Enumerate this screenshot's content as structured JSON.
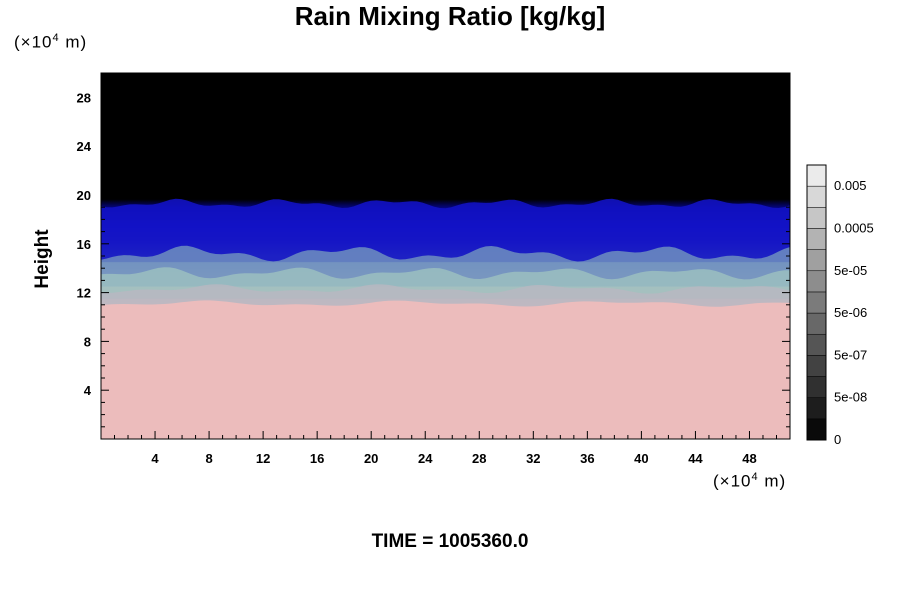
{
  "chart_data": {
    "type": "heatmap",
    "title": "Rain Mixing Ratio [kg/kg]",
    "ylabel": "Height",
    "y_unit_prefix": "(×10",
    "y_unit_exp": "4",
    "y_unit_suffix": " m)",
    "x_unit_prefix": "(×10",
    "x_unit_exp": "4",
    "x_unit_suffix": " m)",
    "xlim": [
      0,
      51
    ],
    "ylim": [
      0,
      30
    ],
    "x_ticks": [
      4,
      8,
      12,
      16,
      20,
      24,
      28,
      32,
      36,
      40,
      44,
      48
    ],
    "y_ticks": [
      4,
      8,
      12,
      16,
      20,
      24,
      28
    ],
    "colorbar": {
      "labels": [
        "0",
        "5e-08",
        "5e-07",
        "5e-06",
        "5e-05",
        "0.0005",
        "0.005"
      ],
      "levels": 13
    },
    "layers": [
      {
        "region": "low",
        "y_range": [
          0,
          11
        ],
        "color": "#ecbcbc"
      },
      {
        "region": "transition",
        "y_range": [
          11,
          14
        ],
        "color": "#9fbfbf"
      },
      {
        "region": "upper",
        "y_range": [
          14,
          19
        ],
        "color": "#1a1acc"
      },
      {
        "region": "top",
        "y_range": [
          19,
          30
        ],
        "color": "#000000"
      }
    ],
    "time_label": "TIME = 1005360.0"
  }
}
